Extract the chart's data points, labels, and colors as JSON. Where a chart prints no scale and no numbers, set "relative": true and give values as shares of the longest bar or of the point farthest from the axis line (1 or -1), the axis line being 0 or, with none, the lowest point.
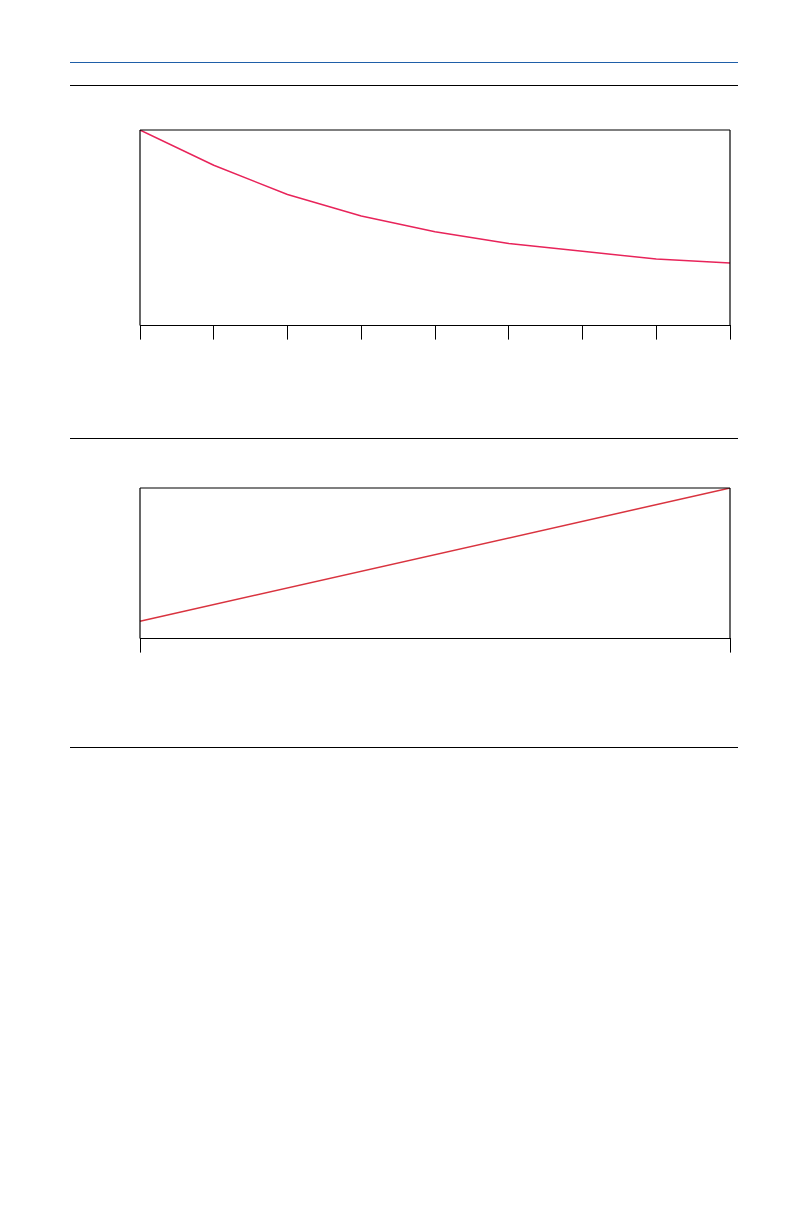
{
  "chart_data": [
    {
      "type": "line",
      "relative": true,
      "categories": [
        null,
        null,
        null,
        null,
        null,
        null,
        null,
        null,
        null
      ],
      "series": [
        {
          "color": "#e8245a",
          "values": [
            1,
            0.82,
            0.67,
            0.56,
            0.48,
            0.42,
            0.38,
            0.34,
            0.32
          ]
        }
      ]
    },
    {
      "type": "line",
      "relative": true,
      "categories": [
        null,
        null
      ],
      "series": [
        {
          "color": "#d9333f",
          "values": [
            0.115,
            1
          ]
        }
      ]
    }
  ]
}
